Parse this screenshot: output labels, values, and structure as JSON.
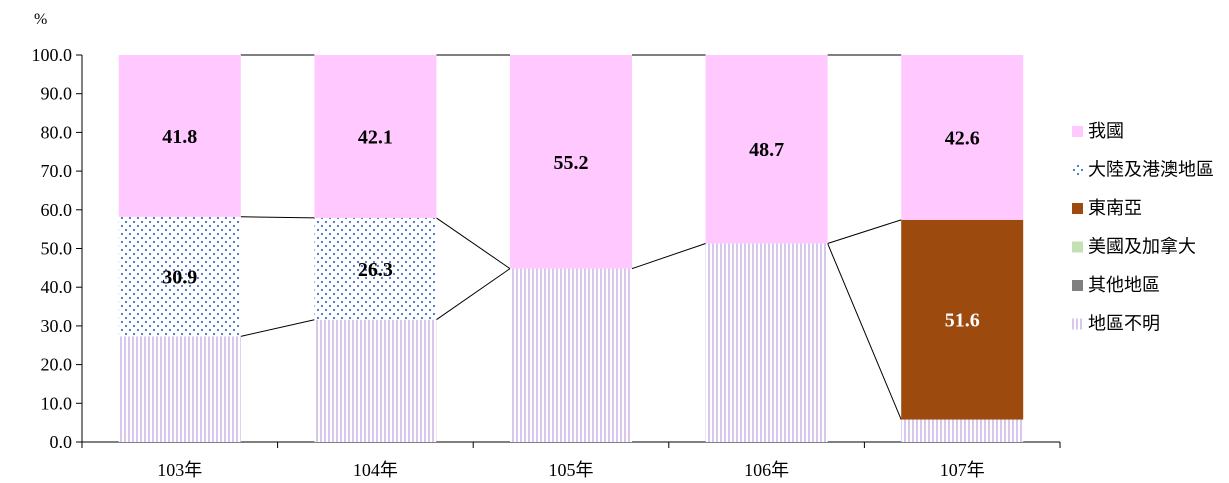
{
  "chart_data": {
    "type": "bar",
    "stacked": true,
    "y_unit": "%",
    "ylim": [
      0,
      100
    ],
    "y_ticks": [
      "0.0",
      "10.0",
      "20.0",
      "30.0",
      "40.0",
      "50.0",
      "60.0",
      "70.0",
      "80.0",
      "90.0",
      "100.0"
    ],
    "categories": [
      "103年",
      "104年",
      "105年",
      "106年",
      "107年"
    ],
    "series": [
      {
        "name": "地區不明",
        "values": [
          27.3,
          31.6,
          44.8,
          51.3,
          5.8
        ],
        "color": "#d9c6ec",
        "pattern": "vertical-stripes"
      },
      {
        "name": "其他地區",
        "values": [
          0,
          0,
          0,
          0,
          0
        ],
        "color": "#808080"
      },
      {
        "name": "美國及加拿大",
        "values": [
          0,
          0,
          0,
          0,
          0
        ],
        "color": "#c5e0b4"
      },
      {
        "name": "東南亞",
        "values": [
          0,
          0,
          0,
          0,
          51.6
        ],
        "color": "#9c4a0e"
      },
      {
        "name": "大陸及港澳地區",
        "values": [
          30.9,
          26.3,
          0,
          0,
          0
        ],
        "color": "#4472c4",
        "pattern": "dots"
      },
      {
        "name": "我國",
        "values": [
          41.8,
          42.1,
          55.2,
          48.7,
          42.6
        ],
        "color": "#ffc8ff"
      }
    ],
    "data_labels": [
      {
        "category": "103年",
        "series": "我國",
        "text": "41.8",
        "color": "#000000"
      },
      {
        "category": "103年",
        "series": "大陸及港澳地區",
        "text": "30.9",
        "color": "#000000"
      },
      {
        "category": "104年",
        "series": "我國",
        "text": "42.1",
        "color": "#000000"
      },
      {
        "category": "104年",
        "series": "大陸及港澳地區",
        "text": "26.3",
        "color": "#000000"
      },
      {
        "category": "105年",
        "series": "我國",
        "text": "55.2",
        "color": "#000000"
      },
      {
        "category": "106年",
        "series": "我國",
        "text": "48.7",
        "color": "#000000"
      },
      {
        "category": "107年",
        "series": "我國",
        "text": "42.6",
        "color": "#000000"
      },
      {
        "category": "107年",
        "series": "東南亞",
        "text": "51.6",
        "color": "#ffffff"
      }
    ],
    "legend": {
      "position": "right",
      "entries": [
        "我國",
        "大陸及港澳地區",
        "東南亞",
        "美國及加拿大",
        "其他地區",
        "地區不明"
      ]
    },
    "series_lines": true,
    "grid": false
  }
}
